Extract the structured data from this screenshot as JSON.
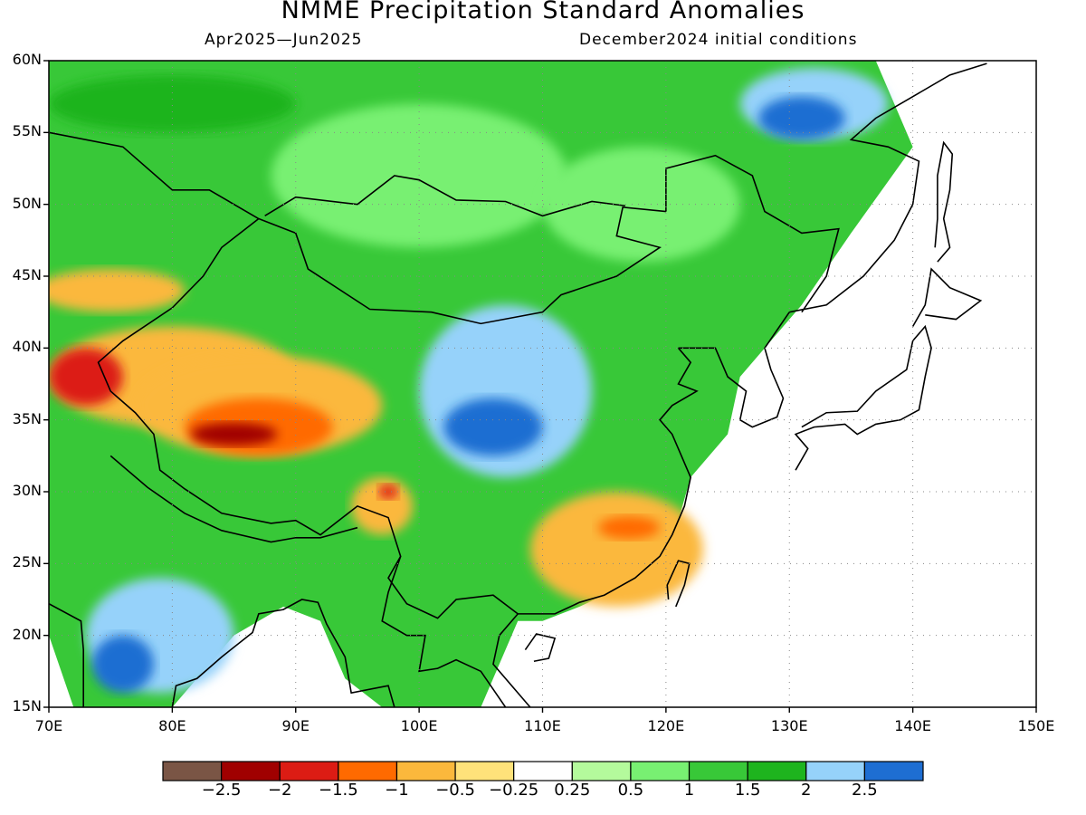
{
  "title": "NMME Precipitation Standard Anomalies",
  "subtitle_left": "Apr2025—Jun2025",
  "subtitle_right": "December2024 initial conditions",
  "map": {
    "lon_range": [
      70,
      150
    ],
    "lat_range": [
      15,
      60
    ],
    "grid": "dotted",
    "lat_ticks": [
      {
        "value": 60,
        "label": "60N"
      },
      {
        "value": 55,
        "label": "55N"
      },
      {
        "value": 50,
        "label": "50N"
      },
      {
        "value": 45,
        "label": "45N"
      },
      {
        "value": 40,
        "label": "40N"
      },
      {
        "value": 35,
        "label": "35N"
      },
      {
        "value": 30,
        "label": "30N"
      },
      {
        "value": 25,
        "label": "25N"
      },
      {
        "value": 20,
        "label": "20N"
      },
      {
        "value": 15,
        "label": "15N"
      }
    ],
    "lon_ticks": [
      {
        "value": 70,
        "label": "70E"
      },
      {
        "value": 80,
        "label": "80E"
      },
      {
        "value": 90,
        "label": "90E"
      },
      {
        "value": 100,
        "label": "100E"
      },
      {
        "value": 110,
        "label": "110E"
      },
      {
        "value": 120,
        "label": "120E"
      },
      {
        "value": 130,
        "label": "130E"
      },
      {
        "value": 140,
        "label": "140E"
      },
      {
        "value": 150,
        "label": "150E"
      }
    ]
  },
  "colorbar": {
    "colors": [
      "#7a5545",
      "#a00000",
      "#dc1c14",
      "#ff6a00",
      "#fbb83c",
      "#ffe27a",
      "#ffffff",
      "#b4fa9c",
      "#78f072",
      "#38c838",
      "#1eb41e",
      "#96d2fa",
      "#1e6ed2"
    ],
    "labels": [
      {
        "at": 1,
        "text": "−2.5"
      },
      {
        "at": 2,
        "text": "−2"
      },
      {
        "at": 3,
        "text": "−1.5"
      },
      {
        "at": 4,
        "text": "−1"
      },
      {
        "at": 5,
        "text": "−0.5"
      },
      {
        "at": 6,
        "text": "−0.25"
      },
      {
        "at": 7,
        "text": "0.25"
      },
      {
        "at": 8,
        "text": "0.5"
      },
      {
        "at": 9,
        "text": "1"
      },
      {
        "at": 10,
        "text": "1.5"
      },
      {
        "at": 11,
        "text": "2"
      },
      {
        "at": 12,
        "text": "2.5"
      }
    ]
  },
  "anomaly_regions": [
    {
      "name": "kazakhstan-dry",
      "level": 4,
      "center": [
        75,
        44
      ],
      "radius": [
        6,
        1.5
      ]
    },
    {
      "name": "central-asia-dry",
      "level": 4,
      "center": [
        80,
        38
      ],
      "radius": [
        10,
        3.5
      ]
    },
    {
      "name": "tarim-dry",
      "level": 4,
      "center": [
        87,
        36
      ],
      "radius": [
        10,
        3.5
      ]
    },
    {
      "name": "tarim-dry-core",
      "level": 3,
      "center": [
        87,
        34.5
      ],
      "radius": [
        6,
        2
      ]
    },
    {
      "name": "tibet-dry",
      "level": 1,
      "center": [
        85,
        34
      ],
      "radius": [
        3.5,
        0.8
      ]
    },
    {
      "name": "pamir-dry",
      "level": 2,
      "center": [
        73,
        38
      ],
      "radius": [
        3,
        2
      ]
    },
    {
      "name": "east-tibet-dry",
      "level": 4,
      "center": [
        97,
        29
      ],
      "radius": [
        2.5,
        2
      ]
    },
    {
      "name": "east-tibet-dry-core",
      "level": 2,
      "center": [
        97.5,
        30
      ],
      "radius": [
        0.8,
        0.5
      ]
    },
    {
      "name": "south-china-dry",
      "level": 4,
      "center": [
        116,
        26
      ],
      "radius": [
        7,
        4
      ]
    },
    {
      "name": "south-china-dry-core",
      "level": 3,
      "center": [
        117,
        27.5
      ],
      "radius": [
        2.5,
        0.8
      ]
    },
    {
      "name": "north-china-wet",
      "level": 11,
      "center": [
        107,
        37
      ],
      "radius": [
        7,
        6
      ]
    },
    {
      "name": "north-china-wet-core",
      "level": 12,
      "center": [
        106,
        34.5
      ],
      "radius": [
        4,
        2
      ]
    },
    {
      "name": "india-wet",
      "level": 11,
      "center": [
        79,
        20
      ],
      "radius": [
        6,
        4
      ]
    },
    {
      "name": "india-wet-core",
      "level": 12,
      "center": [
        76,
        18
      ],
      "radius": [
        2.5,
        2
      ]
    },
    {
      "name": "siberia-wet",
      "level": 11,
      "center": [
        132,
        57
      ],
      "radius": [
        6,
        2.5
      ]
    },
    {
      "name": "siberia-wet-core",
      "level": 12,
      "center": [
        131,
        56
      ],
      "radius": [
        3.5,
        1.5
      ]
    }
  ]
}
